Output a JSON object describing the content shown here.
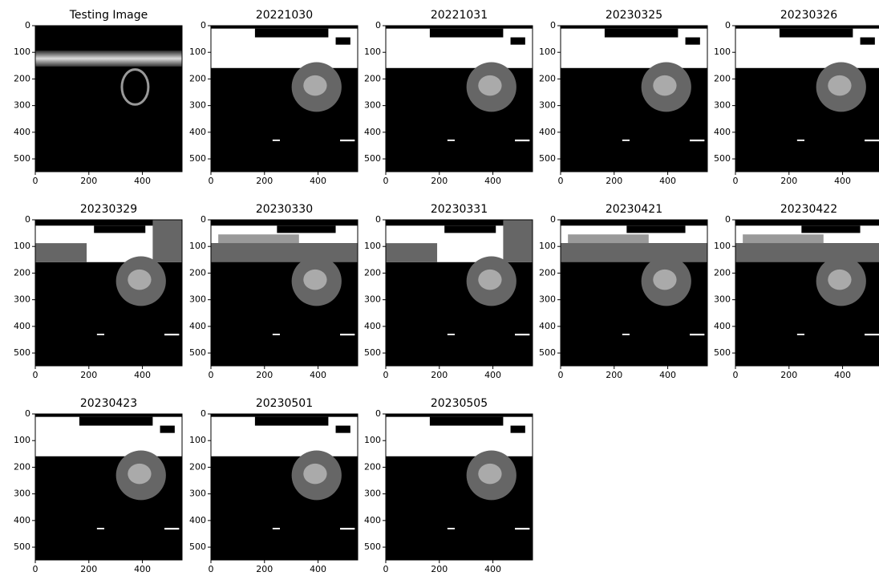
{
  "chart_data": [
    {
      "type": "image",
      "title": "Testing Image",
      "xlim": [
        0,
        548
      ],
      "ylim": [
        548,
        0
      ],
      "xticks": [
        0,
        200,
        400
      ],
      "yticks": [
        0,
        100,
        200,
        300,
        400,
        500
      ]
    },
    {
      "type": "image",
      "title": "20221030",
      "xlim": [
        0,
        548
      ],
      "ylim": [
        548,
        0
      ],
      "xticks": [
        0,
        200,
        400
      ],
      "yticks": [
        0,
        100,
        200,
        300,
        400,
        500
      ]
    },
    {
      "type": "image",
      "title": "20221031",
      "xlim": [
        0,
        548
      ],
      "ylim": [
        548,
        0
      ],
      "xticks": [
        0,
        200,
        400
      ],
      "yticks": [
        0,
        100,
        200,
        300,
        400,
        500
      ]
    },
    {
      "type": "image",
      "title": "20230325",
      "xlim": [
        0,
        548
      ],
      "ylim": [
        548,
        0
      ],
      "xticks": [
        0,
        200,
        400
      ],
      "yticks": [
        0,
        100,
        200,
        300,
        400,
        500
      ]
    },
    {
      "type": "image",
      "title": "20230326",
      "xlim": [
        0,
        548
      ],
      "ylim": [
        548,
        0
      ],
      "xticks": [
        0,
        200,
        400
      ],
      "yticks": [
        0,
        100,
        200,
        300,
        400,
        500
      ]
    },
    {
      "type": "image",
      "title": "20230329",
      "xlim": [
        0,
        548
      ],
      "ylim": [
        548,
        0
      ],
      "xticks": [
        0,
        200,
        400
      ],
      "yticks": [
        0,
        100,
        200,
        300,
        400,
        500
      ]
    },
    {
      "type": "image",
      "title": "20230330",
      "xlim": [
        0,
        548
      ],
      "ylim": [
        548,
        0
      ],
      "xticks": [
        0,
        200,
        400
      ],
      "yticks": [
        0,
        100,
        200,
        300,
        400,
        500
      ]
    },
    {
      "type": "image",
      "title": "20230331",
      "xlim": [
        0,
        548
      ],
      "ylim": [
        548,
        0
      ],
      "xticks": [
        0,
        200,
        400
      ],
      "yticks": [
        0,
        100,
        200,
        300,
        400,
        500
      ]
    },
    {
      "type": "image",
      "title": "20230421",
      "xlim": [
        0,
        548
      ],
      "ylim": [
        548,
        0
      ],
      "xticks": [
        0,
        200,
        400
      ],
      "yticks": [
        0,
        100,
        200,
        300,
        400,
        500
      ]
    },
    {
      "type": "image",
      "title": "20230422",
      "xlim": [
        0,
        548
      ],
      "ylim": [
        548,
        0
      ],
      "xticks": [
        0,
        200,
        400
      ],
      "yticks": [
        0,
        100,
        200,
        300,
        400,
        500
      ]
    },
    {
      "type": "image",
      "title": "20230423",
      "xlim": [
        0,
        548
      ],
      "ylim": [
        548,
        0
      ],
      "xticks": [
        0,
        200,
        400
      ],
      "yticks": [
        0,
        100,
        200,
        300,
        400,
        500
      ]
    },
    {
      "type": "image",
      "title": "20230501",
      "xlim": [
        0,
        548
      ],
      "ylim": [
        548,
        0
      ],
      "xticks": [
        0,
        200,
        400
      ],
      "yticks": [
        0,
        100,
        200,
        300,
        400,
        500
      ]
    },
    {
      "type": "image",
      "title": "20230505",
      "xlim": [
        0,
        548
      ],
      "ylim": [
        548,
        0
      ],
      "xticks": [
        0,
        200,
        400
      ],
      "yticks": [
        0,
        100,
        200,
        300,
        400,
        500
      ]
    }
  ]
}
